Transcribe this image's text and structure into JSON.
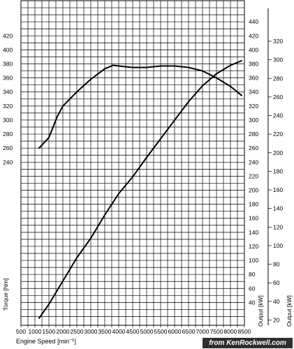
{
  "watermark": "from KenRockwell.com",
  "chart_data": {
    "type": "line",
    "x_axis": {
      "label": "Engine Speed",
      "unit_prefix": "[min",
      "unit_sup": "−1",
      "unit_suffix": "]",
      "min": 500,
      "max": 8500,
      "ticks": [
        500,
        1000,
        1500,
        2000,
        2500,
        3000,
        3500,
        4000,
        4500,
        5000,
        5500,
        6000,
        6500,
        7000,
        7500,
        8000,
        8500
      ]
    },
    "y_axes": [
      {
        "id": "torque",
        "label": "Torque [Nm]",
        "position": "left",
        "min": 0,
        "max": 410,
        "ticks": [
          240,
          260,
          280,
          300,
          320,
          340,
          360,
          380,
          400,
          420
        ]
      },
      {
        "id": "output_kw_1",
        "label": "Output [kW]",
        "position": "right",
        "min": 0,
        "max": 410,
        "ticks": [
          40,
          60,
          80,
          100,
          120,
          140,
          160,
          180,
          200,
          220,
          240,
          260,
          280,
          300,
          320,
          340,
          360,
          380,
          400,
          420,
          440
        ]
      },
      {
        "id": "output_kw_2",
        "label": "Output [kW]",
        "position": "far-right",
        "min": 0,
        "max": 300,
        "ticks": [
          20,
          40,
          60,
          80,
          100,
          120,
          140,
          160,
          180,
          200,
          220,
          240,
          260,
          280,
          300,
          320
        ]
      }
    ],
    "grid": true,
    "series": [
      {
        "axis": "output_kw_2",
        "x": [
          1150,
          1500,
          2000,
          2500,
          3000,
          3500,
          4000,
          4500,
          5000,
          5500,
          6000,
          6500,
          7000,
          7500,
          8000,
          8400
        ],
        "y": [
          22,
          37,
          62,
          87,
          108,
          133,
          156,
          174,
          195,
          215,
          235,
          255,
          272,
          285,
          294,
          299
        ]
      },
      {
        "axis": "torque",
        "x": [
          1150,
          1500,
          1800,
          2000,
          2500,
          3000,
          3500,
          3800,
          4000,
          4500,
          5000,
          5500,
          6000,
          6500,
          7000,
          7500,
          8000,
          8400
        ],
        "y": [
          260,
          275,
          305,
          320,
          340,
          358,
          373,
          378,
          377,
          375,
          375,
          377,
          377,
          375,
          370,
          360,
          348,
          335
        ]
      }
    ]
  }
}
